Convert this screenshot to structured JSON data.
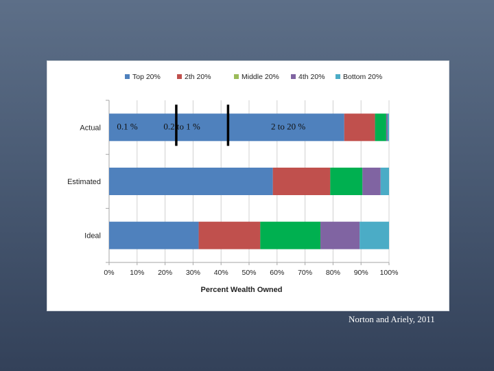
{
  "citation": "Norton and Ariely, 2011",
  "chart_data": {
    "type": "bar",
    "orientation": "horizontal",
    "stacked": true,
    "title": "",
    "xlabel": "Percent Wealth Owned",
    "ylabel": "",
    "xlim": [
      0,
      100
    ],
    "xticks": [
      "0%",
      "10%",
      "20%",
      "30%",
      "40%",
      "50%",
      "60%",
      "70%",
      "80%",
      "90%",
      "100%"
    ],
    "categories": [
      "Actual",
      "Estimated",
      "Ideal"
    ],
    "series": [
      {
        "name": "Top 20%",
        "color": "#4f81bd",
        "values": [
          84,
          58.5,
          32
        ]
      },
      {
        "name": "2th 20%",
        "color": "#c0504d",
        "values": [
          11,
          20.5,
          22
        ]
      },
      {
        "name": "Middle 20%",
        "color": "#9bbb59",
        "values": [
          4,
          11.5,
          21.5
        ]
      },
      {
        "name": "4th 20%",
        "color": "#8064a2",
        "values": [
          0.5,
          6.5,
          14
        ]
      },
      {
        "name": "Bottom 20%",
        "color": "#4bacc6",
        "values": [
          0.5,
          3,
          10.5
        ]
      }
    ],
    "segment_color_overrides": [
      {
        "category": "Actual",
        "series": "Middle 20%",
        "color": "#00b050"
      },
      {
        "category": "Estimated",
        "series": "Middle 20%",
        "color": "#00b050"
      },
      {
        "category": "Ideal",
        "series": "Middle 20%",
        "color": "#00b050"
      }
    ],
    "legend_position": "top",
    "grid": true,
    "annotations": [
      {
        "text": "0.1 %",
        "category": "Actual",
        "x": 6.5
      },
      {
        "text": "0.2 to 1 %",
        "category": "Actual",
        "x": 26
      },
      {
        "text": "2 to 20 %",
        "category": "Actual",
        "x": 64
      },
      {
        "type": "divider",
        "category": "Actual",
        "x": 24
      },
      {
        "type": "divider",
        "category": "Actual",
        "x": 42.5
      }
    ]
  }
}
